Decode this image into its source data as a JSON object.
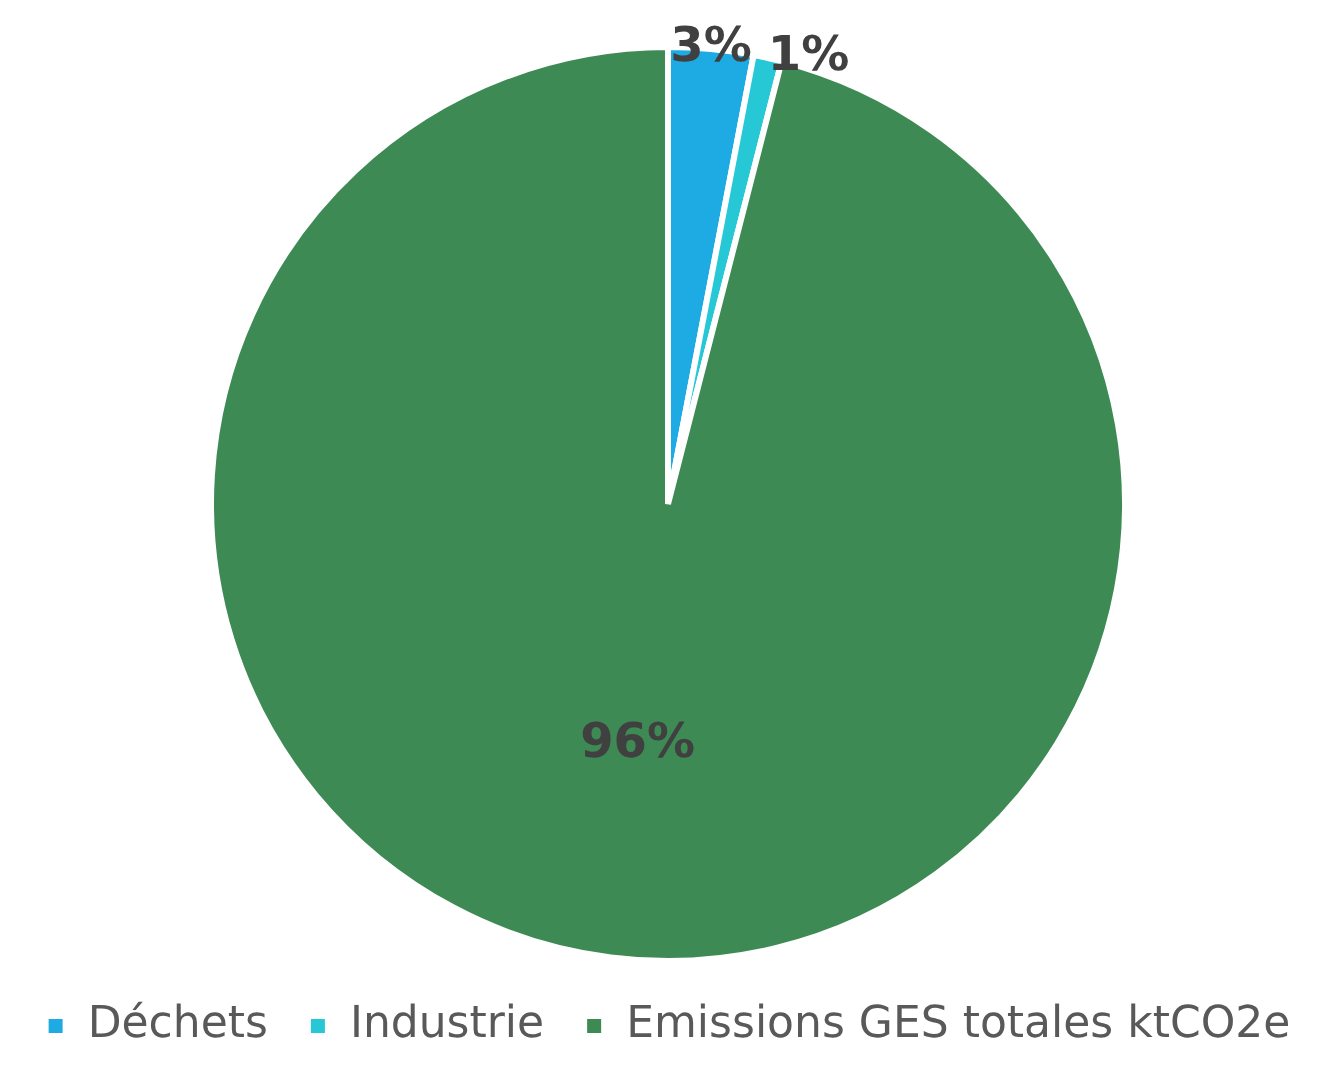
{
  "chart_data": {
    "type": "pie",
    "categories": [
      "Déchets",
      "Industrie",
      "Emissions GES totales ktCO2e"
    ],
    "values": [
      3,
      1,
      96
    ],
    "value_labels": [
      "3%",
      "1%",
      "96%"
    ],
    "colors": [
      "#1eaae2",
      "#27c8d6",
      "#3e8a55"
    ],
    "legend": "bottom"
  }
}
